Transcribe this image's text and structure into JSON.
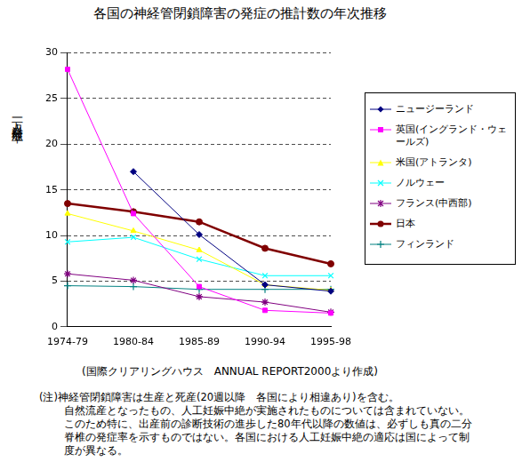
{
  "chart_data": {
    "type": "line",
    "title": "各国の神経管閉鎖障害の発症の推計数の年次推移",
    "y_label": "一万人対発症率",
    "source": "(国際クリアリングハウス　ANNUAL REPORT2000より作成)",
    "notes": [
      "(注)神経管閉鎖障害は生産と死産(20週以降　各国により相違あり)を含む。",
      "自然流産となったもの、人工妊娠中絶が実施されたものについては含まれていない。",
      "このため特に、出産前の診断技術の進歩した80年代以降の数値は、必ずしも真の二分",
      "脊椎の発症率を示すものではない。各国における人工妊娠中絶の適応は国によって制",
      "度が異なる。"
    ],
    "categories": [
      "1974-79",
      "1980-84",
      "1985-89",
      "1990-94",
      "1995-98"
    ],
    "series": [
      {
        "name": "ニュージーランド",
        "color": "#000080",
        "marker": "diamond",
        "line_style": "solid",
        "values": [
          null,
          17.0,
          10.1,
          4.6,
          3.9
        ]
      },
      {
        "name": "英国(イングランド・ウェールズ)",
        "color": "#ff00ff",
        "marker": "square",
        "line_style": "solid",
        "values": [
          28.2,
          12.4,
          4.4,
          1.8,
          1.5
        ]
      },
      {
        "name": "米国(アトランタ)",
        "color": "#ffff00",
        "marker": "triangle",
        "line_style": "solid",
        "values": [
          12.4,
          10.5,
          8.4,
          4.6,
          4.0
        ]
      },
      {
        "name": "ノルウェー",
        "color": "#00ffff",
        "marker": "x",
        "line_style": "solid",
        "values": [
          9.3,
          9.8,
          7.4,
          5.6,
          5.6
        ]
      },
      {
        "name": "フランス(中西部)",
        "color": "#800080",
        "marker": "star",
        "line_style": "solid",
        "values": [
          5.8,
          5.1,
          3.3,
          2.7,
          1.6
        ]
      },
      {
        "name": "日本",
        "color": "#800000",
        "marker": "circle",
        "line_style": "bold",
        "values": [
          13.5,
          12.6,
          11.5,
          8.6,
          6.9
        ]
      },
      {
        "name": "フィンランド",
        "color": "#008080",
        "marker": "plus",
        "line_style": "solid",
        "values": [
          4.5,
          4.4,
          4.1,
          4.1,
          4.1
        ]
      }
    ],
    "ylim": [
      0,
      30
    ],
    "yticks": [
      0,
      5,
      10,
      15,
      20,
      25,
      30
    ],
    "grid": true,
    "legend": "right"
  }
}
